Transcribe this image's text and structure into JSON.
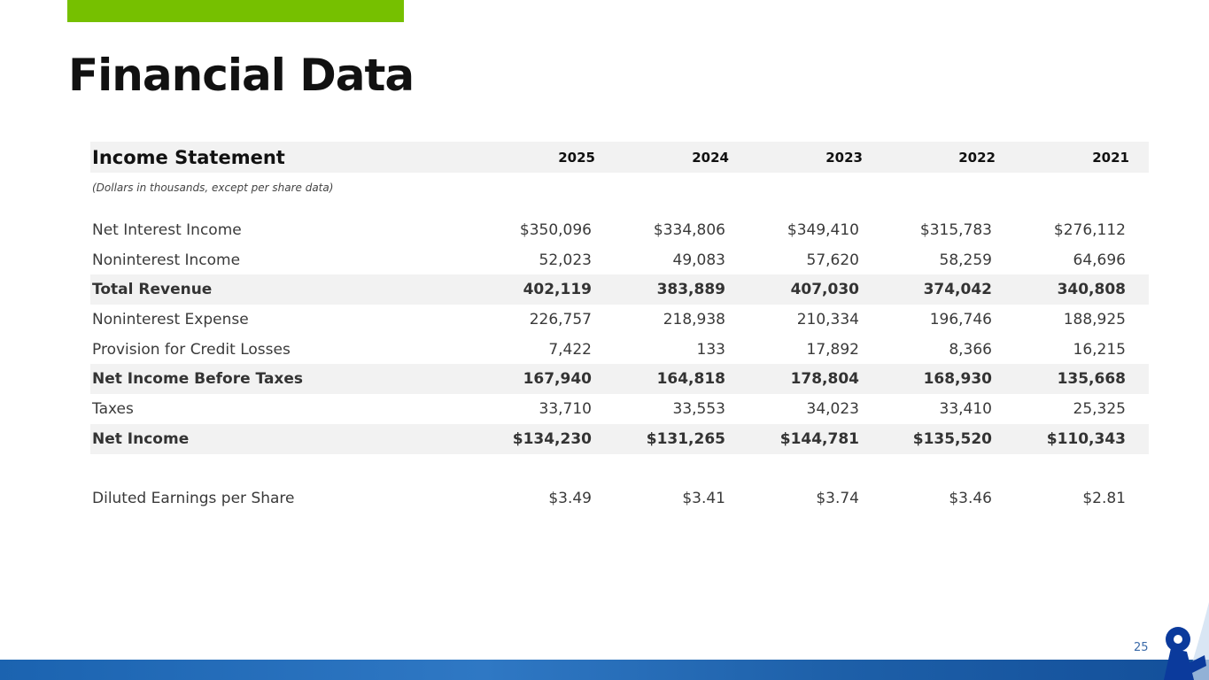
{
  "title": "Financial Data",
  "table": {
    "heading": "Income Statement",
    "years": [
      "2025",
      "2024",
      "2023",
      "2022",
      "2021"
    ],
    "note": "(Dollars in thousands, except per share data)",
    "rows": [
      {
        "label": "Net Interest Income",
        "values": [
          "$350,096",
          "$334,806",
          "$349,410",
          "$315,783",
          "$276,112"
        ],
        "bold": false
      },
      {
        "label": "Noninterest Income",
        "values": [
          "52,023",
          "49,083",
          "57,620",
          "58,259",
          "64,696"
        ],
        "bold": false
      },
      {
        "label": "Total Revenue",
        "values": [
          "402,119",
          "383,889",
          "407,030",
          "374,042",
          "340,808"
        ],
        "bold": true
      },
      {
        "label": "Noninterest Expense",
        "values": [
          "226,757",
          "218,938",
          "210,334",
          "196,746",
          "188,925"
        ],
        "bold": false
      },
      {
        "label": "Provision for Credit Losses",
        "values": [
          "7,422",
          "133",
          "17,892",
          "8,366",
          "16,215"
        ],
        "bold": false
      },
      {
        "label": "Net Income Before Taxes",
        "values": [
          "167,940",
          "164,818",
          "178,804",
          "168,930",
          "135,668"
        ],
        "bold": true
      },
      {
        "label": "Taxes",
        "values": [
          "33,710",
          "33,553",
          "34,023",
          "33,410",
          "25,325"
        ],
        "bold": false
      },
      {
        "label": "Net Income",
        "values": [
          "$134,230",
          "$131,265",
          "$144,781",
          "$135,520",
          "$110,343"
        ],
        "bold": true
      }
    ],
    "eps": {
      "label": "Diluted Earnings per Share",
      "values": [
        "$3.49",
        "$3.41",
        "$3.74",
        "$3.46",
        "$2.81"
      ]
    }
  },
  "page_number": "25",
  "colors": {
    "accent_green": "#76c000",
    "brand_blue": "#1b63b0",
    "logo_blue": "#0b3a9c"
  },
  "logo_icon": "ampersand-logo"
}
